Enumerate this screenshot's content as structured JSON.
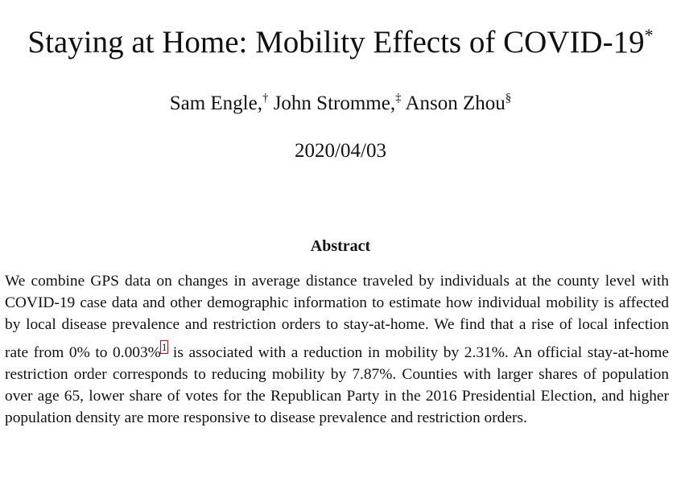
{
  "title": {
    "text": "Staying at Home: Mobility Effects of COVID-19",
    "mark": "*"
  },
  "authors": [
    {
      "name": "Sam Engle,",
      "mark": "†"
    },
    {
      "name": "John Stromme,",
      "mark": "‡"
    },
    {
      "name": "Anson Zhou",
      "mark": "§"
    }
  ],
  "date": "2020/04/03",
  "abstract": {
    "heading": "Abstract",
    "before_footnote": "We combine GPS data on changes in average distance traveled by individuals at the county level with COVID-19 case data and other demographic information to estimate how individual mobility is affected by local disease prevalence and restriction orders to stay-at-home. We find that a rise of local infection rate from 0% to 0.003%",
    "footnote": "1",
    "after_footnote": " is associated with a reduction in mobility by 2.31%. An official stay-at-home restriction order corresponds to reducing mobility by 7.87%. Counties with larger shares of population over age 65, lower share of votes for the Republican Party in the 2016 Presidential Election, and higher population density are more responsive to disease prevalence and restriction orders."
  }
}
